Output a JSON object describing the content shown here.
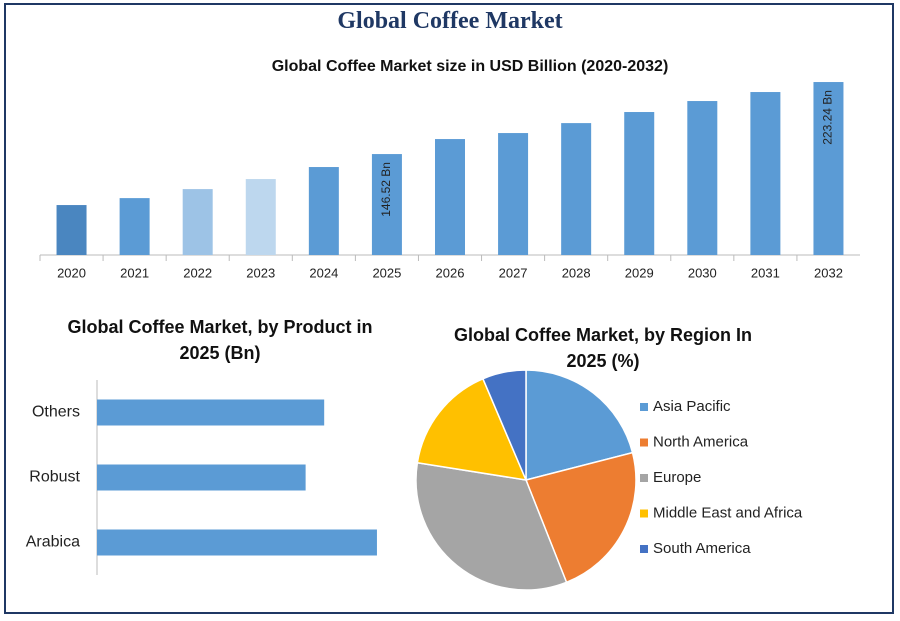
{
  "title": "Global Coffee Market",
  "chart_data": [
    {
      "type": "bar",
      "title": "Global Coffee Market size in USD Billion (2020-2032)",
      "categories": [
        "2020",
        "2021",
        "2022",
        "2023",
        "2024",
        "2025",
        "2026",
        "2027",
        "2028",
        "2029",
        "2030",
        "2031",
        "2032"
      ],
      "values": [
        92.2,
        99.6,
        109.2,
        119.9,
        132.7,
        146.52,
        162.5,
        168.9,
        179.5,
        191.3,
        203.0,
        212.6,
        223.24
      ],
      "value_labels": [
        null,
        null,
        null,
        null,
        null,
        "146.52 Bn",
        null,
        null,
        null,
        null,
        null,
        null,
        "223.24 Bn"
      ],
      "colors": [
        "#4a86c0",
        "#5b9bd5",
        "#9dc3e6",
        "#bdd7ee",
        "#5b9bd5",
        "#5b9bd5",
        "#5b9bd5",
        "#5b9bd5",
        "#5b9bd5",
        "#5b9bd5",
        "#5b9bd5",
        "#5b9bd5",
        "#5b9bd5"
      ],
      "ylim": [
        39,
        235
      ]
    },
    {
      "type": "bar",
      "orientation": "horizontal",
      "title": "Global Coffee Market, by Product in 2025 (Bn)",
      "categories": [
        "Others",
        "Robust",
        "Arabica"
      ],
      "values": [
        46.5,
        42.7,
        57.3
      ],
      "color": "#5b9bd5",
      "xlim": [
        0,
        70
      ]
    },
    {
      "type": "pie",
      "title": "Global Coffee Market, by Region In 2025 (%)",
      "categories": [
        "Asia Pacific",
        "North America",
        "Europe",
        "Middle East and Africa",
        "South America"
      ],
      "values": [
        21,
        23,
        33.5,
        16.1,
        6.4
      ],
      "colors": [
        "#5b9bd5",
        "#ed7d31",
        "#a5a5a5",
        "#ffc000",
        "#4472c4"
      ],
      "legend": "right"
    }
  ]
}
